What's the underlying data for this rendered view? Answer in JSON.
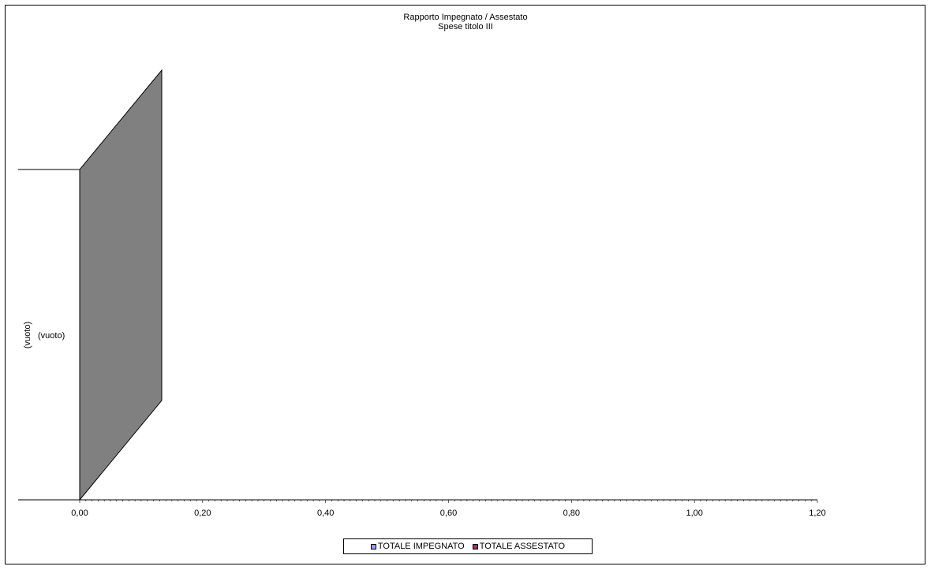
{
  "chart_data": {
    "type": "bar",
    "orientation": "horizontal",
    "title": "Rapporto Impegnato / Assestato",
    "subtitle": "Spese titolo III",
    "categories": [
      "(vuoto)"
    ],
    "category_axis_label": "(vuoto)",
    "series": [
      {
        "name": "TOTALE IMPEGNATO",
        "values": [
          0
        ],
        "color": "#9999ff"
      },
      {
        "name": "TOTALE ASSESTATO",
        "values": [
          0
        ],
        "color": "#993366"
      }
    ],
    "x_ticks": [
      "0,00",
      "0,20",
      "0,40",
      "0,60",
      "0,80",
      "1,00",
      "1,20"
    ],
    "xlim": [
      0,
      1.2
    ],
    "grid": false,
    "legend": "bottom",
    "wall_color": "#808080"
  }
}
